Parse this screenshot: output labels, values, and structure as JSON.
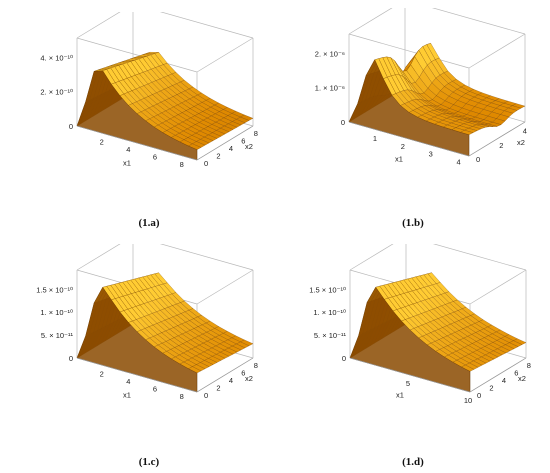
{
  "figure": {
    "surface_colors": {
      "low": "#8a4a00",
      "mid": "#e08a00",
      "high": "#ffcc33",
      "edge": "#6e3c00"
    }
  },
  "chart_data": [
    {
      "type": "surface",
      "caption": "(1.a)",
      "xlabel": "x1",
      "ylabel": "x2",
      "xlim": [
        0,
        9
      ],
      "ylim": [
        0,
        9
      ],
      "zlim": [
        0,
        5.5e-10
      ],
      "xticks": [
        "2",
        "4",
        "6",
        "8"
      ],
      "yticks": [
        "0",
        "2",
        "4",
        "6",
        "8"
      ],
      "zticks": [
        "0",
        "2. × 10⁻¹⁰",
        "4. × 10⁻¹⁰"
      ],
      "shape": {
        "peak": 4.2e-10,
        "ridge_x": 1.7,
        "floor": 3e-11,
        "rise": 0.65,
        "decay": 3.0,
        "dip": 0
      }
    },
    {
      "type": "surface",
      "caption": "(1.b)",
      "xlabel": "x1",
      "ylabel": "x2",
      "xlim": [
        0,
        4.3
      ],
      "ylim": [
        0,
        4.8
      ],
      "zlim": [
        0,
        2.5e-06
      ],
      "xticks": [
        "1",
        "2",
        "3",
        "4"
      ],
      "yticks": [
        "0",
        "2",
        "4"
      ],
      "zticks": [
        "0",
        "1. × 10⁻⁶",
        "2. × 10⁻⁶"
      ],
      "shape": {
        "peak": 2e-06,
        "ridge_x": 1.0,
        "floor": 6e-07,
        "rise": 0.35,
        "decay": 1.1,
        "dip": 0.35
      }
    },
    {
      "type": "surface",
      "caption": "(1.c)",
      "xlabel": "x1",
      "ylabel": "x2",
      "xlim": [
        0,
        9
      ],
      "ylim": [
        0,
        9
      ],
      "zlim": [
        0,
        1.8e-10
      ],
      "xticks": [
        "2",
        "4",
        "6",
        "8"
      ],
      "yticks": [
        "0",
        "2",
        "4",
        "6",
        "8"
      ],
      "zticks": [
        "0",
        "5. × 10⁻¹¹",
        "1. × 10⁻¹⁰",
        "1.5 × 10⁻¹⁰"
      ],
      "shape": {
        "peak": 1.6e-10,
        "ridge_x": 2.0,
        "floor": 2e-11,
        "rise": 0.8,
        "decay": 3.5,
        "dip": 0
      }
    },
    {
      "type": "surface",
      "caption": "(1.d)",
      "xlabel": "x1",
      "ylabel": "x2",
      "xlim": [
        0,
        10
      ],
      "ylim": [
        0,
        9
      ],
      "zlim": [
        0,
        1.8e-10
      ],
      "xticks": [
        "5",
        "10"
      ],
      "yticks": [
        "0",
        "2",
        "4",
        "6",
        "8"
      ],
      "zticks": [
        "0",
        "5. × 10⁻¹¹",
        "1. × 10⁻¹⁰",
        "1.5 × 10⁻¹⁰"
      ],
      "shape": {
        "peak": 1.6e-10,
        "ridge_x": 2.2,
        "floor": 2e-11,
        "rise": 0.9,
        "decay": 3.8,
        "dip": 0
      }
    }
  ]
}
